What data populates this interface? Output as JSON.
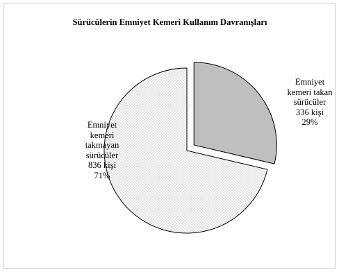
{
  "chart_data": {
    "type": "pie",
    "title": "Sürücülerin Emniyet Kemeri Kullanım Davranışları",
    "slices": [
      {
        "label_lines": [
          "Emniyet",
          "kemeri takan",
          "sürücüler",
          "336 kişi",
          "29%"
        ],
        "count": 336,
        "percent": 29,
        "color": "#bfbfbf",
        "pattern": "solid",
        "exploded": true
      },
      {
        "label_lines": [
          "Emniyet",
          "kemeri",
          "takmayan",
          "sürücüler",
          "836 kişi",
          "71%"
        ],
        "count": 836,
        "percent": 71,
        "color": "#f2f2f2",
        "pattern": "dotted",
        "exploded": false
      }
    ]
  }
}
